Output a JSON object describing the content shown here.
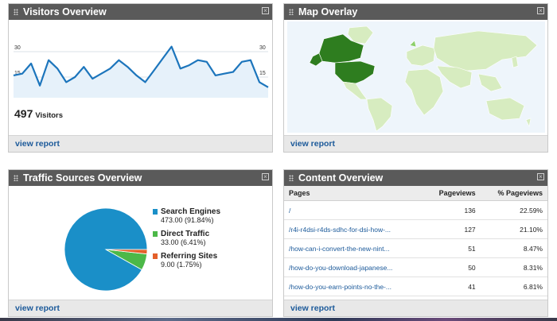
{
  "visitors": {
    "title": "Visitors Overview",
    "tick_left_top": "30",
    "tick_left_mid": "15",
    "tick_right_top": "30",
    "tick_right_mid": "15",
    "count": "497",
    "count_label": "Visitors",
    "footer_link": "view report",
    "line_color": "#1c75bc",
    "values": [
      16,
      17,
      23,
      10,
      25,
      20,
      12,
      15,
      21,
      14,
      17,
      20,
      25,
      21,
      16,
      12,
      19,
      26,
      33,
      20,
      22,
      25,
      24,
      16,
      17,
      18,
      24,
      25,
      12,
      9
    ]
  },
  "map": {
    "title": "Map Overlay",
    "footer_link": "view report"
  },
  "traffic": {
    "title": "Traffic Sources Overview",
    "footer_link": "view report",
    "sources": [
      {
        "name": "Search Engines",
        "value": "473.00 (91.84%)",
        "pct": 91.84,
        "color": "#1a8fc8"
      },
      {
        "name": "Direct Traffic",
        "value": "33.00 (6.41%)",
        "pct": 6.41,
        "color": "#4cb848"
      },
      {
        "name": "Referring Sites",
        "value": "9.00 (1.75%)",
        "pct": 1.75,
        "color": "#e4602b"
      }
    ]
  },
  "content": {
    "title": "Content Overview",
    "footer_link": "view report",
    "headers": [
      "Pages",
      "Pageviews",
      "% Pageviews"
    ],
    "rows": [
      [
        "/",
        "136",
        "22.59%"
      ],
      [
        "/r4i-r4dsi-r4ds-sdhc-for-dsi-how-...",
        "127",
        "21.10%"
      ],
      [
        "/how-can-i-convert-the-new-nint...",
        "51",
        "8.47%"
      ],
      [
        "/how-do-you-download-japanese...",
        "50",
        "8.31%"
      ],
      [
        "/how-do-you-earn-points-no-the-...",
        "41",
        "6.81%"
      ]
    ]
  }
}
